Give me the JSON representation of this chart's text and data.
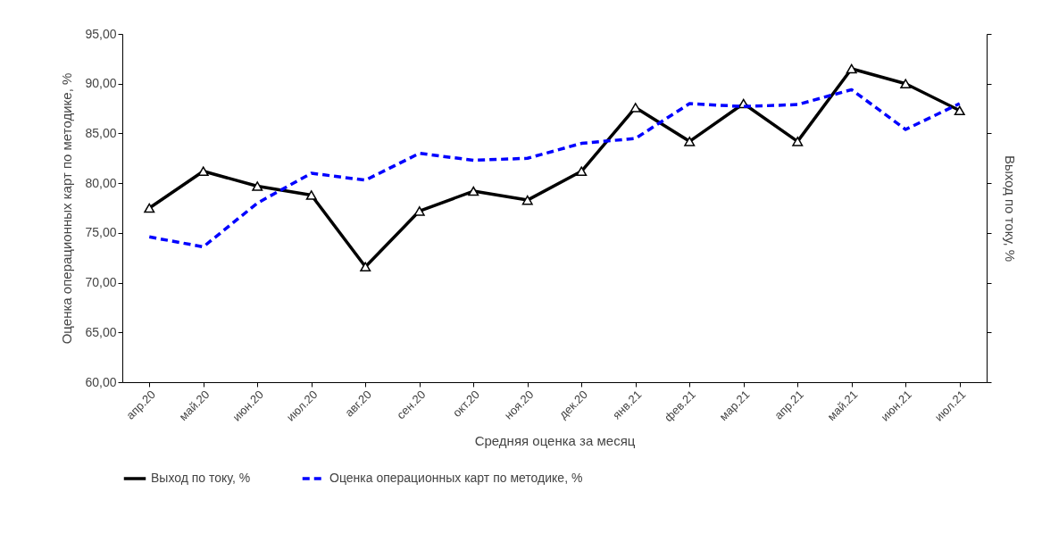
{
  "chart_data": {
    "type": "line",
    "xlabel": "Средняя  оценка за месяц",
    "ylabel": "Оценка операционных карт по методике, %",
    "y2label": "Выход по току, %",
    "categories": [
      "апр.20",
      "май.20",
      "июн.20",
      "июл.20",
      "авг.20",
      "сен.20",
      "окт.20",
      "ноя.20",
      "дек.20",
      "янв.21",
      "фев.21",
      "мар.21",
      "апр.21",
      "май.21",
      "июн.21",
      "июл.21"
    ],
    "series": [
      {
        "name": "Выход по току, %",
        "color": "#000000",
        "marker": "triangle",
        "line_style": "solid",
        "values": [
          77.5,
          81.2,
          79.7,
          78.8,
          71.6,
          77.2,
          79.2,
          78.3,
          81.2,
          87.6,
          84.2,
          88.0,
          84.2,
          91.5,
          90.0,
          87.3
        ]
      },
      {
        "name": "Оценка операционных карт по методике, %",
        "color": "#0000ff",
        "marker": "none",
        "line_style": "dashed",
        "values": [
          74.6,
          73.6,
          78.0,
          81.0,
          80.3,
          83.0,
          82.3,
          82.5,
          84.0,
          84.5,
          88.0,
          87.7,
          87.9,
          89.4,
          85.4,
          88.0
        ]
      }
    ],
    "ylim": [
      60,
      95
    ],
    "yticks": [
      {
        "value": 60,
        "label": "60,00"
      },
      {
        "value": 65,
        "label": "65,00"
      },
      {
        "value": 70,
        "label": "70,00"
      },
      {
        "value": 75,
        "label": "75,00"
      },
      {
        "value": 80,
        "label": "80,00"
      },
      {
        "value": 85,
        "label": "85,00"
      },
      {
        "value": 90,
        "label": "90,00"
      },
      {
        "value": 95,
        "label": "95,00"
      }
    ],
    "grid": false,
    "legend": "bottom"
  }
}
